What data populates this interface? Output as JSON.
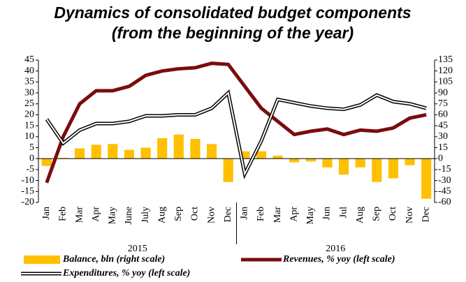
{
  "chart_data": {
    "type": "bar-line",
    "title": "Dynamics of consolidated budget components",
    "subtitle": "(from the beginning of the year)",
    "categories": [
      "Jan",
      "Feb",
      "Mar",
      "Apr",
      "May",
      "June",
      "July",
      "Aug",
      "Sep",
      "Oct",
      "Nov",
      "Dec",
      "Jan",
      "Feb",
      "Mar",
      "Apr",
      "May",
      "Jun",
      "Jul",
      "Aug",
      "Sep",
      "Oct",
      "Nov",
      "Dec"
    ],
    "x_groups": [
      "2015",
      "2016"
    ],
    "series": [
      {
        "name": "Balance, bln (right scale)",
        "type": "bar",
        "axis": "y2",
        "color": "#ffc000",
        "values": [
          -10,
          1,
          14,
          19,
          20,
          12,
          15,
          28,
          33,
          27,
          20,
          -32,
          10,
          10,
          4,
          -5,
          -4,
          -12,
          -22,
          -12,
          -32,
          -27,
          -9,
          -55
        ]
      },
      {
        "name": "Revenues, % yoy (left scale)",
        "type": "line",
        "axis": "y",
        "color": "#7b0c0c",
        "values": [
          -11,
          10,
          25,
          31,
          31,
          33,
          38,
          40,
          41,
          41.5,
          43.5,
          43,
          33,
          23,
          17,
          11,
          12.5,
          13.5,
          11,
          13,
          12.5,
          14,
          18.5,
          20
        ]
      },
      {
        "name": "Expenditures, % yoy (left scale)",
        "type": "double-line",
        "axis": "y",
        "color": "#000000",
        "values": [
          18,
          7,
          13,
          16,
          16,
          17,
          19.5,
          19.5,
          20,
          20,
          23,
          30,
          -7,
          8,
          27,
          25.5,
          24,
          23,
          22.5,
          24.5,
          29,
          26,
          25,
          23
        ]
      }
    ],
    "ylim": [
      -20,
      45
    ],
    "yticks": [
      -20,
      -15,
      -10,
      -5,
      0,
      5,
      10,
      15,
      20,
      25,
      30,
      35,
      40,
      45
    ],
    "y2lim": [
      -60,
      135
    ],
    "y2ticks": [
      -60,
      -45,
      -30,
      -15,
      0,
      15,
      30,
      45,
      60,
      75,
      90,
      105,
      120,
      135
    ],
    "legend": "bottom",
    "grid": false
  }
}
